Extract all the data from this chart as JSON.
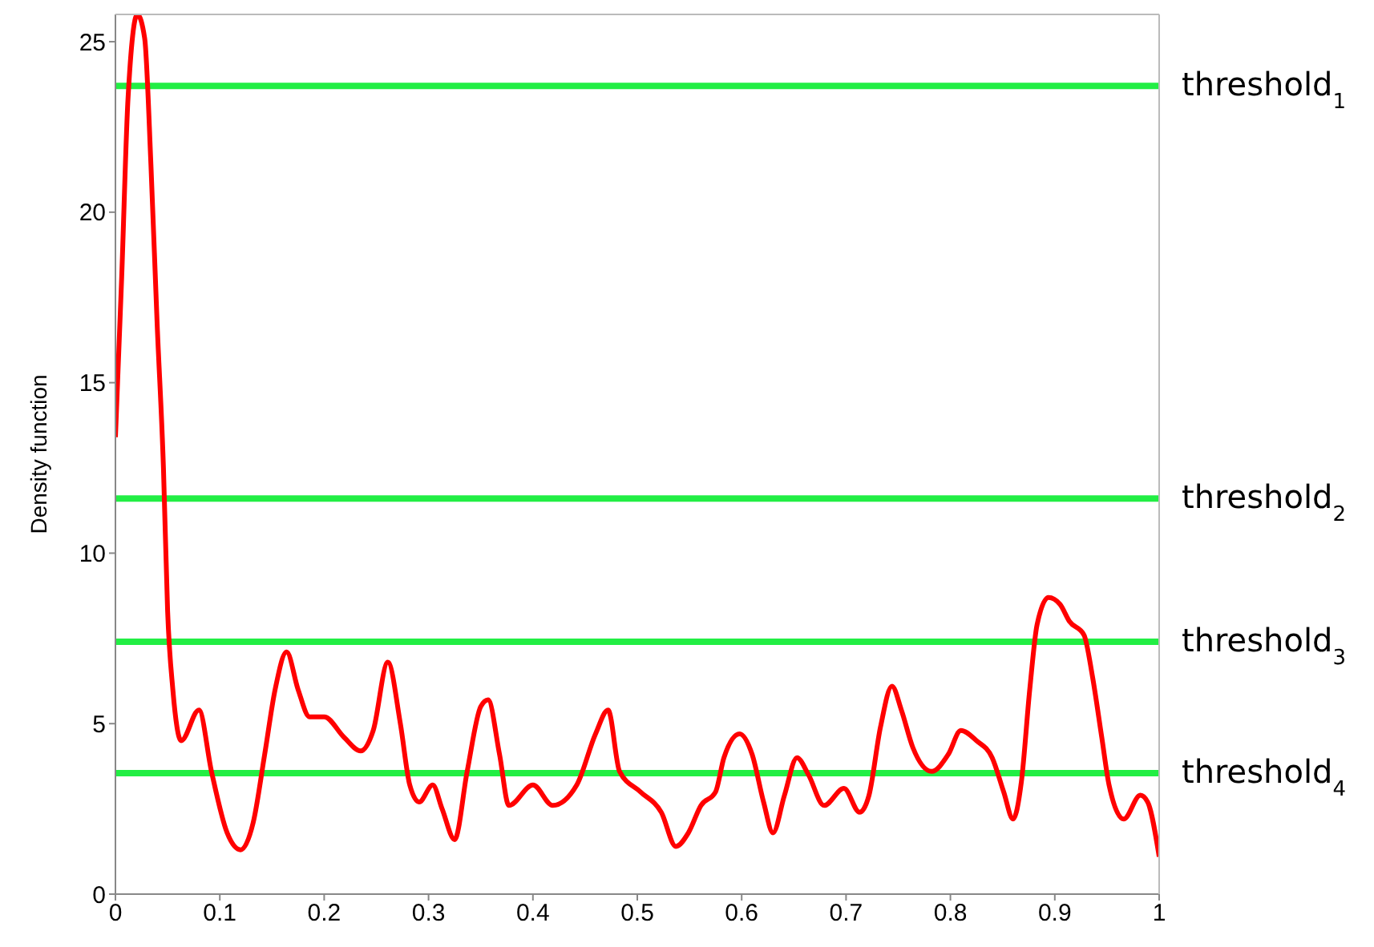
{
  "chart_data": {
    "type": "line",
    "ylabel": "Density function",
    "x": [
      0,
      0.006,
      0.012,
      0.021,
      0.028,
      0.034,
      0.04,
      0.046,
      0.05,
      0.055,
      0.063,
      0.08,
      0.092,
      0.107,
      0.12,
      0.132,
      0.143,
      0.153,
      0.164,
      0.175,
      0.186,
      0.2,
      0.219,
      0.235,
      0.247,
      0.261,
      0.273,
      0.282,
      0.291,
      0.304,
      0.313,
      0.325,
      0.337,
      0.35,
      0.357,
      0.368,
      0.377,
      0.4,
      0.419,
      0.442,
      0.46,
      0.472,
      0.483,
      0.503,
      0.523,
      0.537,
      0.549,
      0.561,
      0.575,
      0.583,
      0.598,
      0.61,
      0.621,
      0.63,
      0.641,
      0.653,
      0.664,
      0.679,
      0.698,
      0.713,
      0.722,
      0.733,
      0.744,
      0.753,
      0.764,
      0.782,
      0.798,
      0.81,
      0.825,
      0.84,
      0.851,
      0.86,
      0.868,
      0.876,
      0.883,
      0.894,
      0.905,
      0.914,
      0.928,
      0.936,
      0.945,
      0.952,
      0.966,
      0.982,
      0.989,
      1
    ],
    "series": [
      {
        "color": "#ff0000",
        "values": [
          13.4,
          18.1,
          23.3,
          25.8,
          25.1,
          21.4,
          16.7,
          12.5,
          8.3,
          6.0,
          4.5,
          5.4,
          3.6,
          1.8,
          1.3,
          2.1,
          4.1,
          6.0,
          7.1,
          6.0,
          5.2,
          5.2,
          4.6,
          4.2,
          4.8,
          6.8,
          5.0,
          3.2,
          2.7,
          3.2,
          2.5,
          1.6,
          3.6,
          5.5,
          5.7,
          4.1,
          2.6,
          3.2,
          2.6,
          3.2,
          4.7,
          5.4,
          3.6,
          3.0,
          2.4,
          1.4,
          1.8,
          2.6,
          3.0,
          4.0,
          4.7,
          4.1,
          2.7,
          1.8,
          2.9,
          4.0,
          3.5,
          2.6,
          3.1,
          2.4,
          2.9,
          4.9,
          6.1,
          5.4,
          4.3,
          3.6,
          4.1,
          4.8,
          4.5,
          4.0,
          3.0,
          2.2,
          3.3,
          6.0,
          7.9,
          8.7,
          8.5,
          8.0,
          7.6,
          6.4,
          4.6,
          3.2,
          2.2,
          2.9,
          2.7,
          1.1
        ]
      }
    ],
    "xlim": [
      0,
      1
    ],
    "xticks": [
      0,
      0.1,
      0.2,
      0.3,
      0.4,
      0.5,
      0.6,
      0.7,
      0.8,
      0.9,
      1
    ],
    "ylim": [
      0,
      25.8
    ],
    "yticks": [
      0,
      5,
      10,
      15,
      20,
      25
    ],
    "ref_lines": [
      {
        "axis": "y",
        "value": 23.7,
        "label": "threshold$_{1}$",
        "color": "#22ee44"
      },
      {
        "axis": "y",
        "value": 11.6,
        "label": "threshold$_{2}$",
        "color": "#22ee44"
      },
      {
        "axis": "y",
        "value": 7.4,
        "label": "threshold$_{3}$",
        "color": "#22ee44"
      },
      {
        "axis": "y",
        "value": 3.55,
        "label": "threshold$_{4}$",
        "color": "#22ee44"
      }
    ],
    "grid": false,
    "legend": false,
    "marker": "none",
    "line_style": "solid"
  }
}
